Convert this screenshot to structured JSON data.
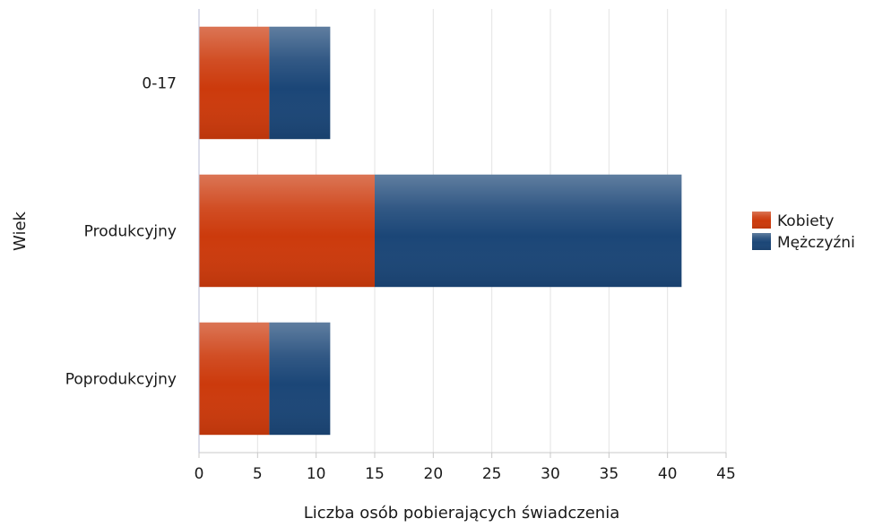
{
  "chart_data": {
    "type": "bar",
    "orientation": "horizontal",
    "stacked": true,
    "categories": [
      "0-17",
      "Produkcyjny",
      "Poprodukcyjny"
    ],
    "series": [
      {
        "name": "Kobiety",
        "values": [
          6,
          15,
          6
        ],
        "color": "#cc3a0c"
      },
      {
        "name": "Mężczyźni",
        "values": [
          5.2,
          26.2,
          5.2
        ],
        "color": "#1b4677"
      }
    ],
    "xlabel": "Liczba osób pobierających świadczenia",
    "ylabel": "Wiek",
    "xlim": [
      0,
      45
    ],
    "xticks": [
      "0",
      "5",
      "10",
      "15",
      "20",
      "25",
      "30",
      "35",
      "40",
      "45"
    ],
    "grid": "vertical",
    "legend": "right"
  }
}
